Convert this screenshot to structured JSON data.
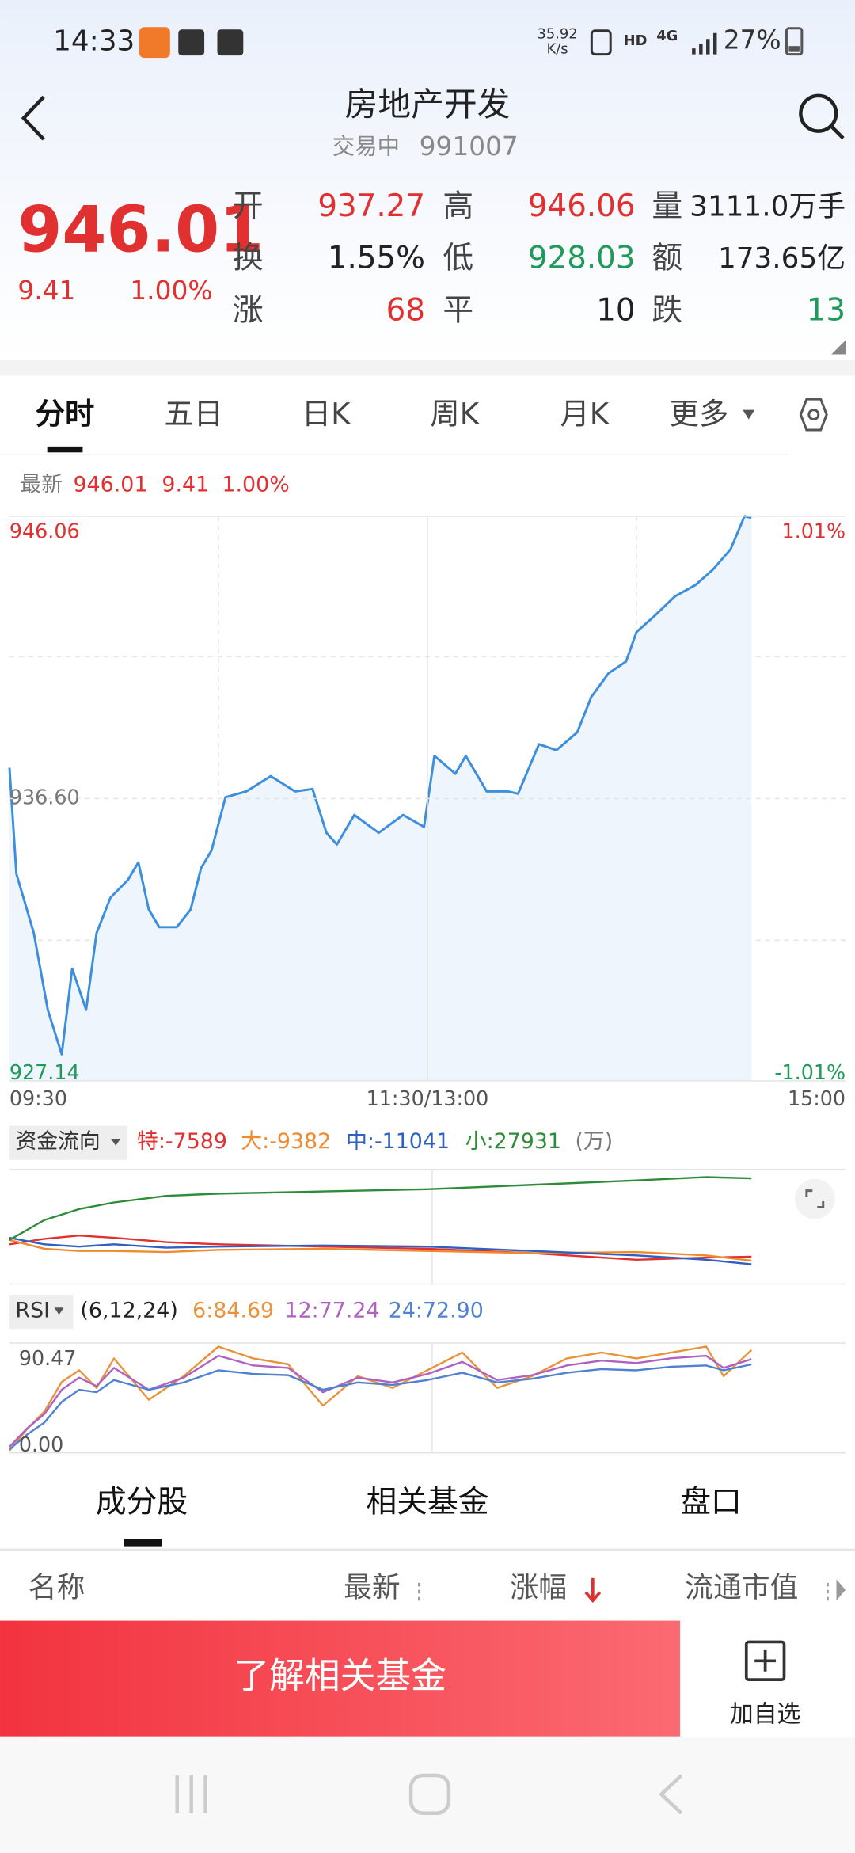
{
  "status_bar": {
    "time": "14:33",
    "speed": "35.92",
    "speed_unit": "K/s",
    "hd": "HD",
    "network": "4G",
    "battery": "27%"
  },
  "header": {
    "title": "房地产开发",
    "status": "交易中",
    "code": "991007"
  },
  "quote": {
    "price": "946.01",
    "change": "9.41",
    "change_pct": "1.00%",
    "fields": [
      {
        "label": "开",
        "value": "937.27"
      },
      {
        "label": "换",
        "value": "1.55%"
      },
      {
        "label": "涨",
        "value": "68"
      },
      {
        "label": "高",
        "value": "946.06"
      },
      {
        "label": "低",
        "value": "928.03"
      },
      {
        "label": "平",
        "value": "10"
      },
      {
        "label": "量",
        "value": "3111.0万手"
      },
      {
        "label": "额",
        "value": "173.65亿"
      },
      {
        "label": "跌",
        "value": "13"
      }
    ]
  },
  "tabs": [
    "分时",
    "五日",
    "日K",
    "周K",
    "月K",
    "更多"
  ],
  "latest": {
    "label": "最新",
    "price": "946.01",
    "change": "9.41",
    "change_pct": "1.00%"
  },
  "price_chart": {
    "type": "line",
    "color": "#3d8fdc",
    "x": [
      0,
      2,
      7,
      11,
      15,
      18,
      22,
      25,
      29,
      34,
      37,
      40,
      43,
      48,
      52,
      55,
      58,
      62,
      68,
      75,
      82,
      87,
      91,
      94,
      99,
      106,
      113,
      119,
      122,
      128,
      131,
      137,
      143,
      146,
      152,
      157,
      163,
      167,
      172,
      177,
      180,
      185,
      191,
      197,
      202,
      207,
      211,
      213
    ],
    "values": [
      937.63,
      934.07,
      932.09,
      929.52,
      928.03,
      930.9,
      929.52,
      932.09,
      933.28,
      933.87,
      934.46,
      932.88,
      932.29,
      932.29,
      932.88,
      934.27,
      934.86,
      936.64,
      936.84,
      937.35,
      936.84,
      936.92,
      935.45,
      935.06,
      936.05,
      935.45,
      936.05,
      935.65,
      938.03,
      937.43,
      938.03,
      936.84,
      936.84,
      936.76,
      938.42,
      938.22,
      938.82,
      940,
      940.8,
      941.19,
      942.18,
      942.7,
      943.37,
      943.76,
      944.28,
      944.95,
      946.06,
      946.01
    ],
    "xlim": [
      0,
      240
    ],
    "xticks": [
      {
        "value": 0,
        "label": "09:30"
      },
      {
        "value": 120,
        "label": "11:30/13:00"
      },
      {
        "value": 240,
        "label": "15:00"
      }
    ],
    "ylim": [
      927.14,
      946.06
    ],
    "yticks": [
      946.06,
      {
        "value": 936.6,
        "label": "936.60"
      },
      927.14
    ],
    "y2lim": [
      -1.01,
      1.01
    ],
    "y2ticks": [
      {
        "value": 1.01,
        "label": "1.01%"
      },
      {
        "value": -1.01,
        "label": "-1.01%"
      }
    ]
  },
  "fund_flow": {
    "type": "line",
    "title": "资金流向",
    "unit": "(万)",
    "xlim": [
      0,
      240
    ],
    "ylim": [
      -20000,
      32000
    ],
    "x": [
      0,
      10,
      20,
      30,
      45,
      60,
      90,
      120,
      150,
      180,
      200,
      213
    ],
    "series": [
      {
        "label": "特:-7589",
        "color": "#e0302f",
        "values": [
          -2000,
          500,
          2000,
          1000,
          -1000,
          -2000,
          -3000,
          -4000,
          -6000,
          -9000,
          -8000,
          -7589
        ]
      },
      {
        "label": "大:-9382",
        "color": "#f08a30",
        "values": [
          0,
          -4000,
          -5000,
          -5000,
          -5500,
          -4500,
          -4000,
          -5000,
          -6000,
          -5500,
          -7000,
          -9382
        ]
      },
      {
        "label": "中:-11041",
        "color": "#2f5fc0",
        "values": [
          1000,
          -2000,
          -3000,
          -2000,
          -3500,
          -3000,
          -2500,
          -3000,
          -5000,
          -7000,
          -9000,
          -11041
        ]
      },
      {
        "label": "小:27931",
        "color": "#2e8b3a",
        "values": [
          0,
          9000,
          14000,
          17000,
          20000,
          21000,
          22000,
          23000,
          25000,
          27000,
          28500,
          27931
        ]
      }
    ]
  },
  "rsi": {
    "type": "line",
    "title": "RSI",
    "params": "(6,12,24)",
    "xlim": [
      0,
      240
    ],
    "ylim": [
      0,
      90.47
    ],
    "yticks": [
      90.47,
      {
        "value": 0,
        "label": "0.00"
      }
    ],
    "x": [
      0,
      5,
      10,
      15,
      20,
      25,
      30,
      40,
      50,
      60,
      70,
      80,
      90,
      100,
      110,
      120,
      130,
      140,
      150,
      160,
      170,
      180,
      190,
      200,
      205,
      213
    ],
    "series": [
      {
        "label": "6:84.69",
        "color": "#e8923a",
        "values": [
          1.9,
          19.5,
          34,
          58.4,
          68.1,
          53.5,
          77.8,
          43.8,
          63.2,
          87.6,
          77.8,
          73,
          38.9,
          63.2,
          53.5,
          68.1,
          82.7,
          53.5,
          63.2,
          77.8,
          82.7,
          77.8,
          82.7,
          87.6,
          63.2,
          84.69
        ]
      },
      {
        "label": "12:77.24",
        "color": "#b060c0",
        "values": [
          5,
          20,
          32,
          52,
          62,
          55,
          70,
          52,
          62,
          80,
          72,
          70,
          50,
          62,
          58,
          65,
          75,
          60,
          64,
          72,
          76,
          74,
          78,
          80,
          70,
          77.24
        ]
      },
      {
        "label": "24:72.90",
        "color": "#5080d0",
        "values": [
          3,
          15,
          25,
          42,
          52,
          50,
          60,
          52,
          58,
          68,
          65,
          64,
          52,
          58,
          56,
          60,
          66,
          58,
          61,
          66,
          69,
          68,
          71,
          72,
          68,
          72.9
        ]
      }
    ]
  },
  "bottom_tabs": [
    "成分股",
    "相关基金",
    "盘口"
  ],
  "table_header": [
    "名称",
    "最新",
    "涨幅",
    "流通市值"
  ],
  "actions": {
    "primary": "了解相关基金",
    "watch": "加自选"
  }
}
